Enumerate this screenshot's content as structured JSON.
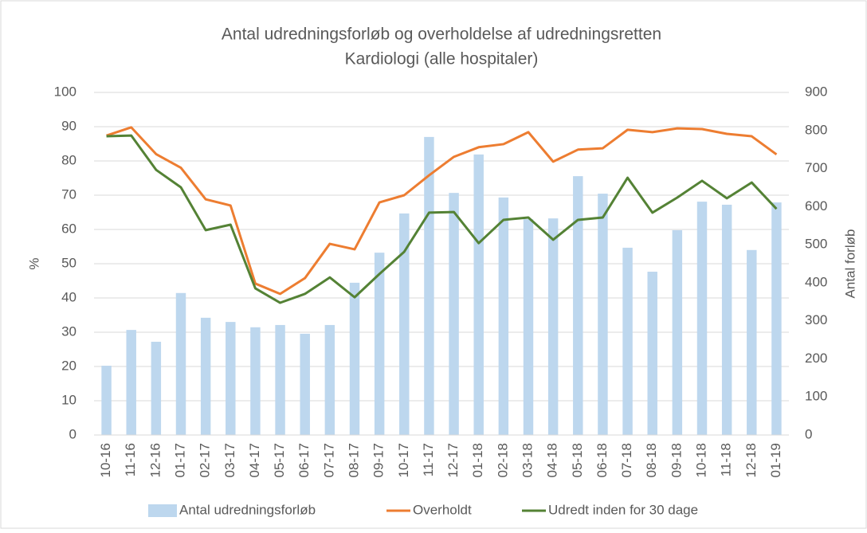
{
  "chart_data": {
    "type": "combo",
    "title": "Antal udredningsforløb og overholdelse af udredningsretten",
    "subtitle": "Kardiologi (alle hospitaler)",
    "ylabel": "%",
    "y2label": "Antal forløb",
    "categories": [
      "10-16",
      "11-16",
      "12-16",
      "01-17",
      "02-17",
      "03-17",
      "04-17",
      "05-17",
      "06-17",
      "07-17",
      "08-17",
      "09-17",
      "10-17",
      "11-17",
      "12-17",
      "01-18",
      "02-18",
      "03-18",
      "04-18",
      "05-18",
      "06-18",
      "07-18",
      "08-18",
      "09-18",
      "10-18",
      "11-18",
      "12-18",
      "01-19"
    ],
    "series": [
      {
        "name": "Antal udredningsforløb",
        "type": "bar",
        "axis": "y2",
        "color": "#bdd7ee",
        "values": [
          182,
          276,
          245,
          373,
          308,
          297,
          283,
          289,
          266,
          289,
          400,
          479,
          582,
          783,
          636,
          737,
          624,
          567,
          569,
          680,
          634,
          492,
          429,
          538,
          613,
          605,
          486,
          611
        ]
      },
      {
        "name": "Overholdt",
        "type": "line",
        "color": "#ed7d31",
        "values": [
          87.4,
          89.8,
          82,
          78,
          68.8,
          67,
          44.2,
          41.2,
          45.8,
          55.8,
          54.2,
          67.9,
          70,
          75.8,
          81.2,
          84,
          84.9,
          88.4,
          79.8,
          83.3,
          83.7,
          89.1,
          88.4,
          89.5,
          89.3,
          87.9,
          87.2,
          81.9
        ]
      },
      {
        "name": "Udredt inden for 30 dage",
        "type": "line",
        "color": "#548235",
        "values": [
          87.2,
          87.4,
          77.4,
          72.3,
          59.8,
          61.4,
          42.8,
          38.6,
          41.2,
          46,
          40.2,
          47,
          53.5,
          64.9,
          65.1,
          56,
          62.8,
          63.5,
          57,
          62.8,
          63.5,
          75.1,
          64.9,
          69.3,
          74.2,
          69.1,
          73.7,
          66
        ]
      }
    ],
    "ylim": [
      0,
      100
    ],
    "yticks": [
      0,
      10,
      20,
      30,
      40,
      50,
      60,
      70,
      80,
      90,
      100
    ],
    "y2lim": [
      0,
      900
    ],
    "y2ticks": [
      0,
      100,
      200,
      300,
      400,
      500,
      600,
      700,
      800,
      900
    ],
    "grid": true,
    "legend": "bottom"
  }
}
